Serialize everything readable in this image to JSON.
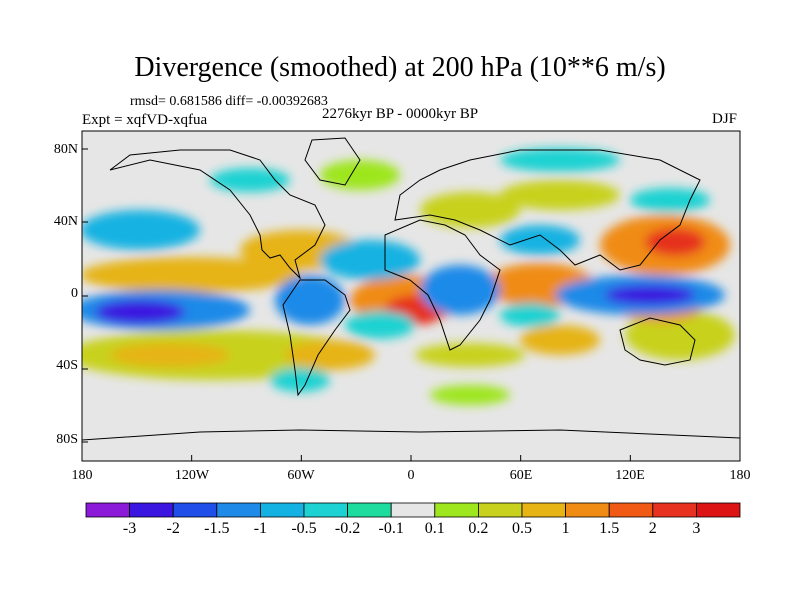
{
  "title": "Divergence (smoothed) at 200 hPa (10**6 m/s)",
  "stats": "rmsd= 0.681586 diff= -0.00392683",
  "period": "2276kyr BP - 0000kyr BP",
  "experiment": "Expt = xqfVD-xqfua",
  "season": "DJF",
  "y_axis_labels": [
    "80N",
    "40N",
    "0",
    "40S",
    "80S"
  ],
  "x_axis_labels": [
    "180",
    "120W",
    "60W",
    "0",
    "60E",
    "120E",
    "180"
  ],
  "colorbar": {
    "labels": [
      "-3",
      "-2",
      "-1.5",
      "-1",
      "-0.5",
      "-0.2",
      "-0.1",
      "0.1",
      "0.2",
      "0.5",
      "1",
      "1.5",
      "2",
      "3"
    ],
    "colors": [
      "#8c1ad9",
      "#3a16e0",
      "#1f4ee8",
      "#1f8ae8",
      "#14b2e2",
      "#1cd2d2",
      "#1edc9e",
      "#e6e6e6",
      "#9ee61e",
      "#c8d21e",
      "#e6b414",
      "#f08c14",
      "#f05a14",
      "#e6321e",
      "#dc1414"
    ]
  },
  "map": {
    "extent": {
      "lon": [
        -180,
        180
      ],
      "lat": [
        -90,
        90
      ]
    },
    "background_color": "#e6e6e6",
    "land_color": "none"
  }
}
